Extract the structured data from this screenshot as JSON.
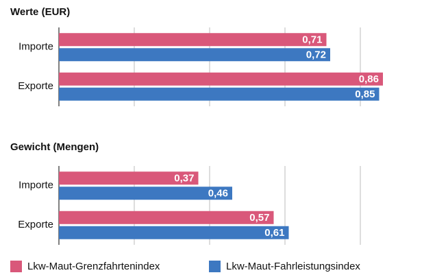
{
  "chart_data": [
    {
      "type": "bar",
      "orientation": "horizontal",
      "title": "Werte (EUR)",
      "categories": [
        "Importe",
        "Exporte"
      ],
      "series": [
        {
          "name": "Lkw-Maut-Grenzfahrtenindex",
          "color": "#d9587a",
          "values": [
            0.71,
            0.86
          ],
          "value_labels": [
            "0,71",
            "0,86"
          ]
        },
        {
          "name": "Lkw-Maut-Fahrleistungsindex",
          "color": "#3d78c1",
          "values": [
            0.72,
            0.85
          ],
          "value_labels": [
            "0,72",
            "0,85"
          ]
        }
      ],
      "xlim": [
        0,
        0.9
      ],
      "xticks": [
        0,
        0.2,
        0.4,
        0.6,
        0.8
      ],
      "grid": true
    },
    {
      "type": "bar",
      "orientation": "horizontal",
      "title": "Gewicht (Mengen)",
      "categories": [
        "Importe",
        "Exporte"
      ],
      "series": [
        {
          "name": "Lkw-Maut-Grenzfahrtenindex",
          "color": "#d9587a",
          "values": [
            0.37,
            0.57
          ],
          "value_labels": [
            "0,37",
            "0,57"
          ]
        },
        {
          "name": "Lkw-Maut-Fahrleistungsindex",
          "color": "#3d78c1",
          "values": [
            0.46,
            0.61
          ],
          "value_labels": [
            "0,46",
            "0,61"
          ]
        }
      ],
      "xlim": [
        0,
        0.9
      ],
      "xticks": [
        0,
        0.2,
        0.4,
        0.6,
        0.8
      ],
      "grid": true
    }
  ]
}
